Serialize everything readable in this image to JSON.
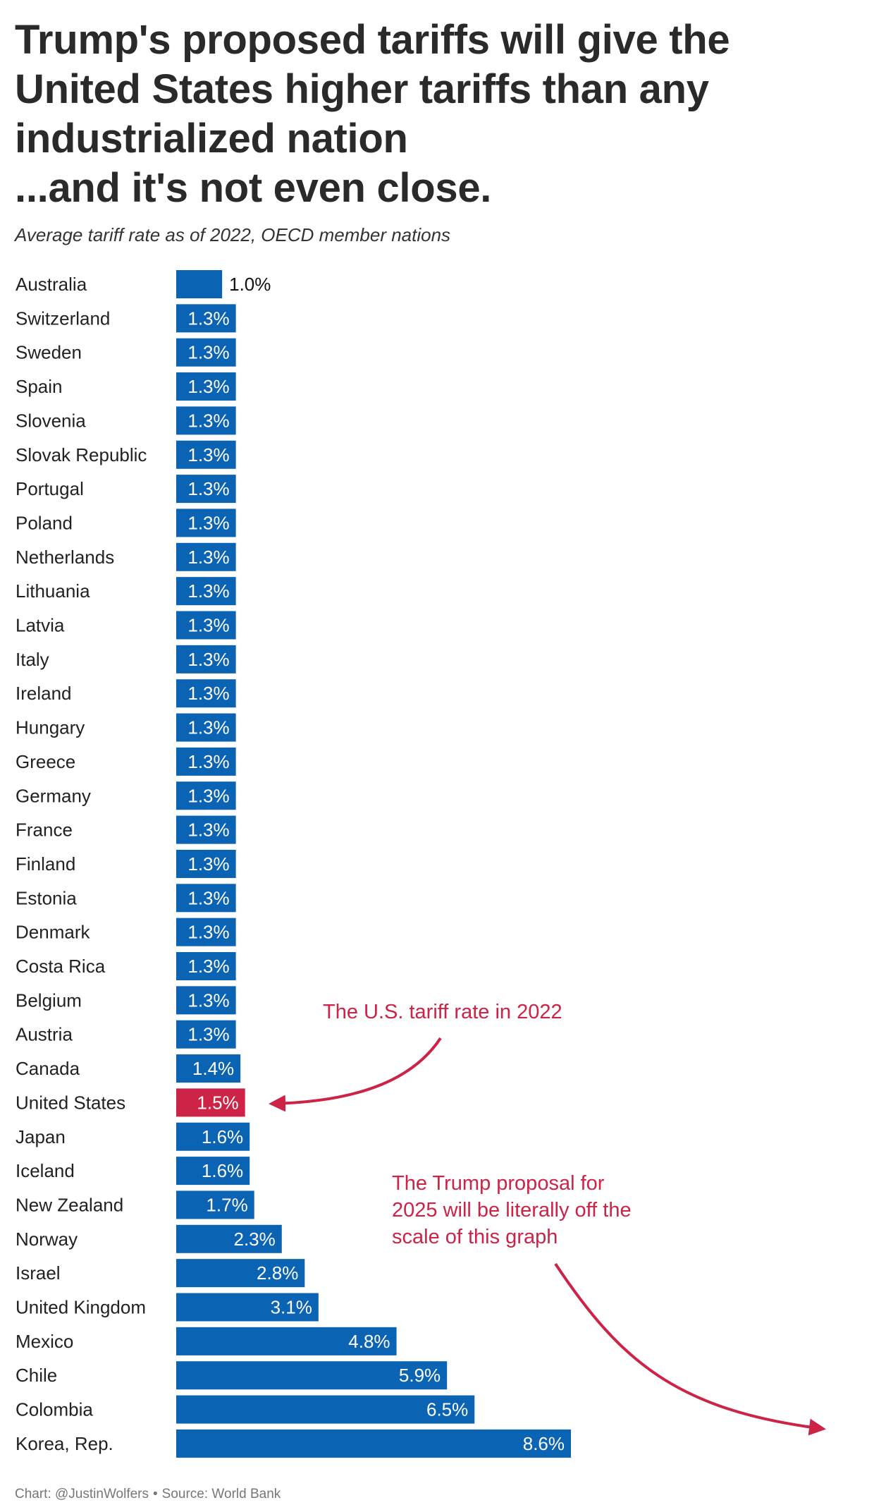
{
  "header": {
    "title_lines": [
      "Trump's proposed tariffs will give the",
      "United States higher tariffs than any",
      "industrialized nation",
      "...and it's not even close."
    ],
    "subtitle": "Average tariff rate as of 2022, OECD member nations"
  },
  "colors": {
    "bar": "#0b63b4",
    "highlight": "#cc2346",
    "annotation": "#cc2346",
    "label_inside": "#ffffff",
    "label_outside": "#111111",
    "category_text": "#222222"
  },
  "chart_data": {
    "type": "bar",
    "orientation": "horizontal",
    "title": "Trump's proposed tariffs will give the United States higher tariffs than any industrialized nation ...and it's not even close.",
    "subtitle": "Average tariff rate as of 2022, OECD member nations",
    "xlabel": "",
    "ylabel": "",
    "unit": "%",
    "xlim": [
      0,
      8.6
    ],
    "grid": false,
    "legend": "none",
    "highlight": "United States",
    "categories": [
      "Australia",
      "Switzerland",
      "Sweden",
      "Spain",
      "Slovenia",
      "Slovak Republic",
      "Portugal",
      "Poland",
      "Netherlands",
      "Lithuania",
      "Latvia",
      "Italy",
      "Ireland",
      "Hungary",
      "Greece",
      "Germany",
      "France",
      "Finland",
      "Estonia",
      "Denmark",
      "Costa Rica",
      "Belgium",
      "Austria",
      "Canada",
      "United States",
      "Japan",
      "Iceland",
      "New Zealand",
      "Norway",
      "Israel",
      "United Kingdom",
      "Mexico",
      "Chile",
      "Colombia",
      "Korea, Rep."
    ],
    "values": [
      1.0,
      1.3,
      1.3,
      1.3,
      1.3,
      1.3,
      1.3,
      1.3,
      1.3,
      1.3,
      1.3,
      1.3,
      1.3,
      1.3,
      1.3,
      1.3,
      1.3,
      1.3,
      1.3,
      1.3,
      1.3,
      1.3,
      1.3,
      1.4,
      1.5,
      1.6,
      1.6,
      1.7,
      2.3,
      2.8,
      3.1,
      4.8,
      5.9,
      6.5,
      8.6
    ],
    "data_labels": [
      "1.0%",
      "1.3%",
      "1.3%",
      "1.3%",
      "1.3%",
      "1.3%",
      "1.3%",
      "1.3%",
      "1.3%",
      "1.3%",
      "1.3%",
      "1.3%",
      "1.3%",
      "1.3%",
      "1.3%",
      "1.3%",
      "1.3%",
      "1.3%",
      "1.3%",
      "1.3%",
      "1.3%",
      "1.3%",
      "1.3%",
      "1.4%",
      "1.5%",
      "1.6%",
      "1.6%",
      "1.7%",
      "2.3%",
      "2.8%",
      "3.1%",
      "4.8%",
      "5.9%",
      "6.5%",
      "8.6%"
    ],
    "annotations": [
      {
        "name": "annotation-us-2022",
        "lines": [
          "The U.S. tariff rate in 2022"
        ],
        "target": "United States"
      },
      {
        "name": "annotation-trump-proposal",
        "lines": [
          "The Trump proposal for",
          "2025 will be literally off the",
          "scale of this graph"
        ],
        "target": "off-scale-right"
      }
    ]
  },
  "footer": {
    "chart_credit": "Chart: @JustinWolfers",
    "separator": "•",
    "source": "Source: World Bank"
  }
}
